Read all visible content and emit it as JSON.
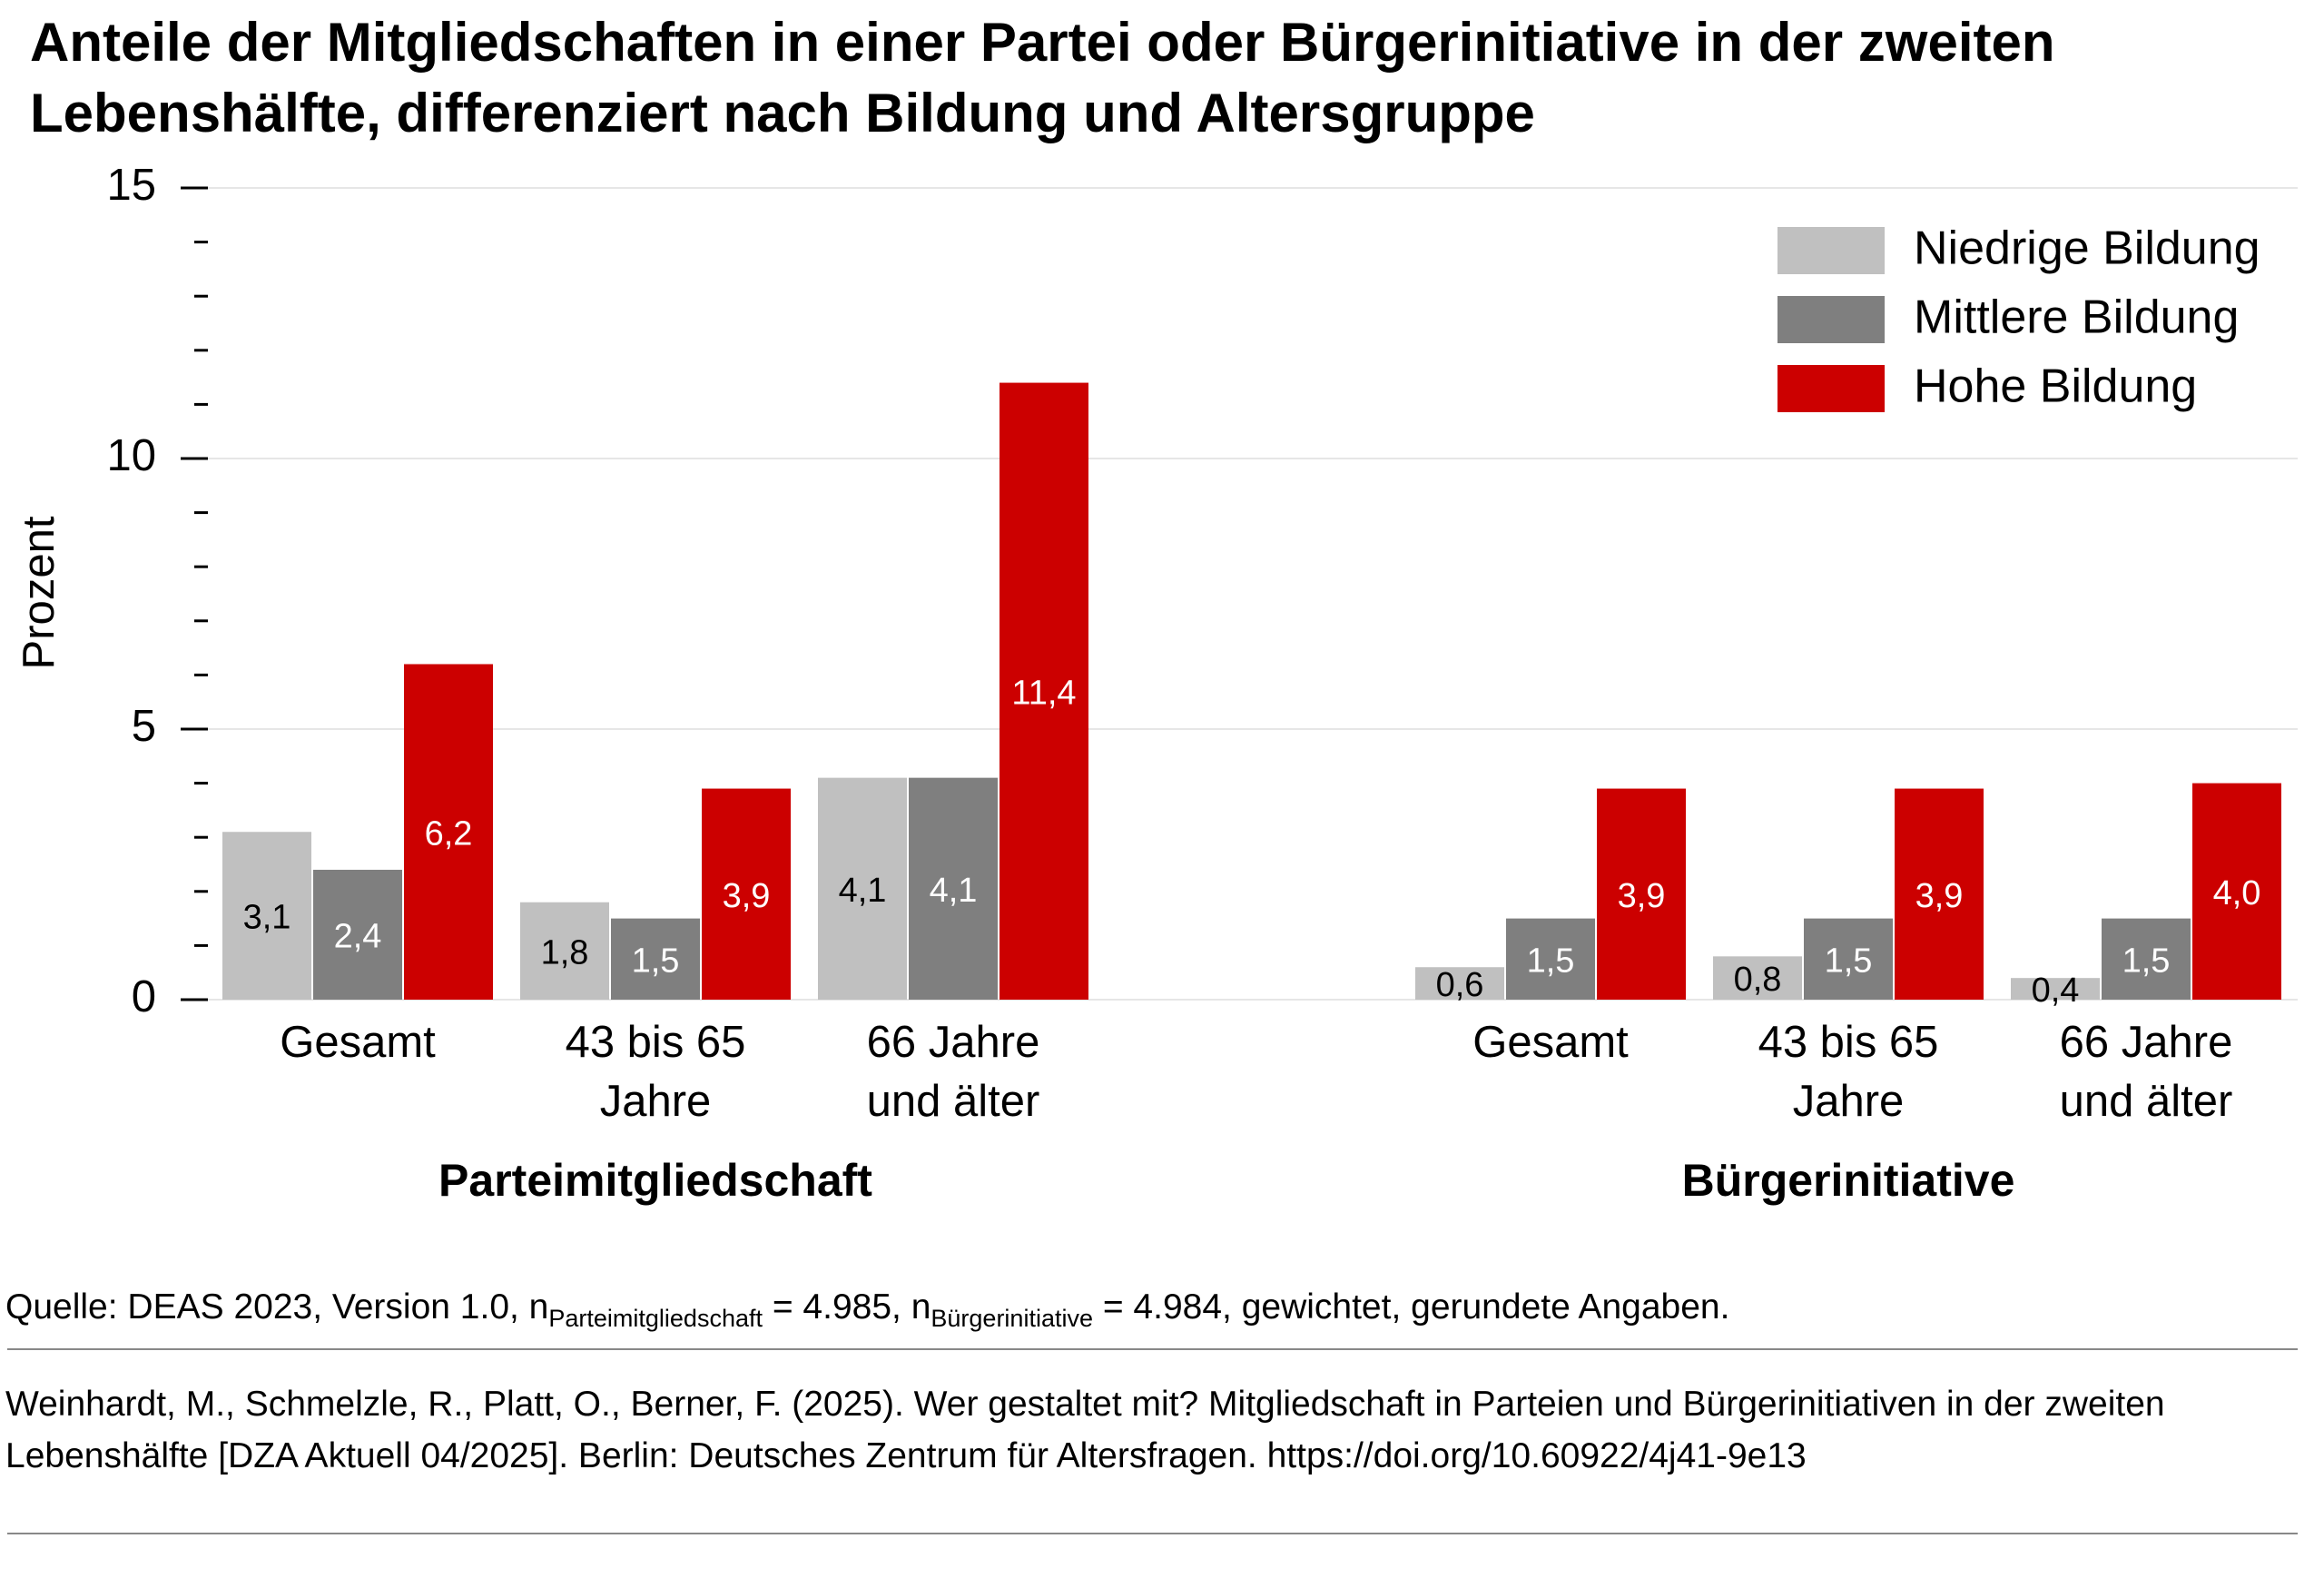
{
  "chart_data": {
    "type": "bar",
    "title": "Anteile der Mitgliedschaften in einer Partei oder Bürgerinitiative in der zweiten Lebenshälfte, differenziert nach Bildung und Altersgruppe",
    "y_label": "Prozent",
    "ylim": [
      0,
      15
    ],
    "yticks": [
      0,
      5,
      10,
      15
    ],
    "yminorticks": [
      1,
      2,
      3,
      4,
      6,
      7,
      8,
      9,
      11,
      12,
      13,
      14
    ],
    "grid": true,
    "legend_position": "top-right",
    "legend": [
      {
        "name": "Niedrige Bildung",
        "color": "#c0c0c0",
        "label_color": "#000000"
      },
      {
        "name": "Mittlere Bildung",
        "color": "#7f7f7f",
        "label_color": "#ffffff"
      },
      {
        "name": "Hohe Bildung",
        "color": "#cc0000",
        "label_color": "#ffffff"
      }
    ],
    "panels": [
      {
        "title": "Parteimitgliedschaft",
        "categories": [
          "Gesamt",
          "43 bis 65 Jahre",
          "66 Jahre und älter"
        ],
        "series": [
          {
            "values": [
              3.1,
              1.8,
              4.1
            ],
            "value_labels": [
              "3,1",
              "1,8",
              "4,1"
            ]
          },
          {
            "values": [
              2.4,
              1.5,
              4.1
            ],
            "value_labels": [
              "2,4",
              "1,5",
              "4,1"
            ]
          },
          {
            "values": [
              6.2,
              3.9,
              11.4
            ],
            "value_labels": [
              "6,2",
              "3,9",
              "11,4"
            ]
          }
        ]
      },
      {
        "title": "Bürgerinitiative",
        "categories": [
          "Gesamt",
          "43 bis 65 Jahre",
          "66 Jahre und älter"
        ],
        "series": [
          {
            "values": [
              0.6,
              0.8,
              0.4
            ],
            "value_labels": [
              "0,6",
              "0,8",
              "0,4"
            ]
          },
          {
            "values": [
              1.5,
              1.5,
              1.5
            ],
            "value_labels": [
              "1,5",
              "1,5",
              "1,5"
            ]
          },
          {
            "values": [
              3.9,
              3.9,
              4.0
            ],
            "value_labels": [
              "3,9",
              "3,9",
              "4,0"
            ]
          }
        ]
      }
    ]
  },
  "footer": {
    "source": [
      "Quelle: DEAS 2023, Version 1.0, n",
      "Parteimitgliedschaft",
      " = 4.985, n",
      "Bürgerinitiative",
      " = 4.984, gewichtet, gerundete Angaben."
    ],
    "citation": "Weinhardt, M., Schmelzle, R., Platt, O., Berner, F. (2025). Wer gestaltet mit? Mitgliedschaft in Parteien und Bürgerinitiativen in der zweiten Lebenshälfte [DZA Aktuell 04/2025]. Berlin: Deutsches Zentrum für Altersfragen. https://doi.org/10.60922/4j41-9e13"
  }
}
